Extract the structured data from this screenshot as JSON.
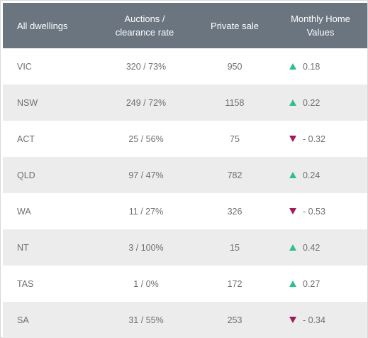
{
  "header": {
    "col1": "All dwellings",
    "col2_line1": "Auctions /",
    "col2_line2": "clearance rate",
    "col3": "Private sale",
    "col4_line1": "Monthly Home",
    "col4_line2": "Values"
  },
  "colors": {
    "header_bg": "#6a7580",
    "row_alt_bg": "#ececec",
    "up": "#2dbf8f",
    "down": "#a01b5b"
  },
  "rows": [
    {
      "state": "VIC",
      "auctions": "320 / 73%",
      "private": "950",
      "trend": "up",
      "icon": "triangle-up-icon",
      "change": "0.18"
    },
    {
      "state": "NSW",
      "auctions": "249 / 72%",
      "private": "1158",
      "trend": "up",
      "icon": "triangle-up-icon",
      "change": "0.22"
    },
    {
      "state": "ACT",
      "auctions": "25 / 56%",
      "private": "75",
      "trend": "down",
      "icon": "triangle-down-icon",
      "change": "- 0.32"
    },
    {
      "state": "QLD",
      "auctions": "97 / 47%",
      "private": "782",
      "trend": "up",
      "icon": "triangle-up-icon",
      "change": "0.24"
    },
    {
      "state": "WA",
      "auctions": "11 / 27%",
      "private": "326",
      "trend": "down",
      "icon": "triangle-down-icon",
      "change": "- 0.53"
    },
    {
      "state": "NT",
      "auctions": "3 / 100%",
      "private": "15",
      "trend": "up",
      "icon": "triangle-up-icon",
      "change": "0.42"
    },
    {
      "state": "TAS",
      "auctions": "1 / 0%",
      "private": "172",
      "trend": "up",
      "icon": "triangle-up-icon",
      "change": "0.27"
    },
    {
      "state": "SA",
      "auctions": "31 / 55%",
      "private": "253",
      "trend": "down",
      "icon": "triangle-down-icon",
      "change": "- 0.34"
    }
  ]
}
